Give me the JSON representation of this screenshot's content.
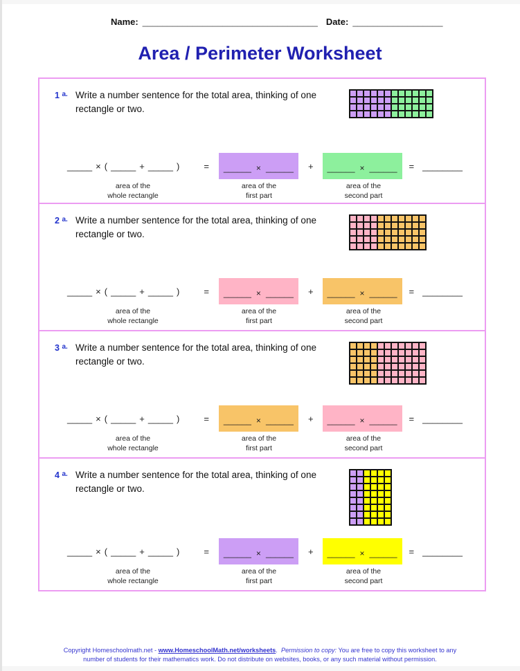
{
  "header": {
    "name_label": "Name:",
    "name_line": "___________________________________",
    "date_label": "Date:",
    "date_line": "__________________"
  },
  "title": "Area / Perimeter Worksheet",
  "shared": {
    "prompt": "Write a number sentence for the total area, thinking of one rectangle or two.",
    "blank": "_____",
    "times": "×",
    "open_paren": "(",
    "plus": "+",
    "close_paren": ")",
    "equals": "=",
    "box_blank": "______",
    "final_blank": "________",
    "label_area": "area of the",
    "label_whole": "whole rectangle",
    "label_first": "first part",
    "label_second": "second part"
  },
  "problems": [
    {
      "number": "1",
      "suffix": "a.",
      "grid": {
        "rows": 4,
        "first_cols": 6,
        "second_cols": 6,
        "first_color": "#cc9ef5",
        "second_color": "#8df09d"
      }
    },
    {
      "number": "2",
      "suffix": "a.",
      "grid": {
        "rows": 5,
        "first_cols": 4,
        "second_cols": 7,
        "first_color": "#ffb4c6",
        "second_color": "#f8c468"
      }
    },
    {
      "number": "3",
      "suffix": "a.",
      "grid": {
        "rows": 6,
        "first_cols": 4,
        "second_cols": 7,
        "first_color": "#f8c468",
        "second_color": "#ffb4c6"
      }
    },
    {
      "number": "4",
      "suffix": "a.",
      "grid": {
        "rows": 8,
        "first_cols": 2,
        "second_cols": 4,
        "first_color": "#cc9ef5",
        "second_color": "#ffff00"
      }
    }
  ],
  "footer": {
    "copyright_prefix": "Copyright Homeschoolmath.net - ",
    "link": "www.HomeschoolMath.net/worksheets",
    "after_link": ".  ",
    "permission_label": "Permission to copy:",
    "permission_text": " You are free to copy this worksheet to any",
    "line2": "number of students for their mathematics work. Do not distribute on websites, books, or any such material without permission."
  },
  "colors": {
    "title": "#2020b0",
    "problem_number": "#2233cc",
    "section_border": "#ec9cf2",
    "footer_text": "#3434cf",
    "purple": "#cc9ef5",
    "green": "#8df09d",
    "pink": "#ffb4c6",
    "orange": "#f8c468",
    "yellow": "#ffff00"
  }
}
